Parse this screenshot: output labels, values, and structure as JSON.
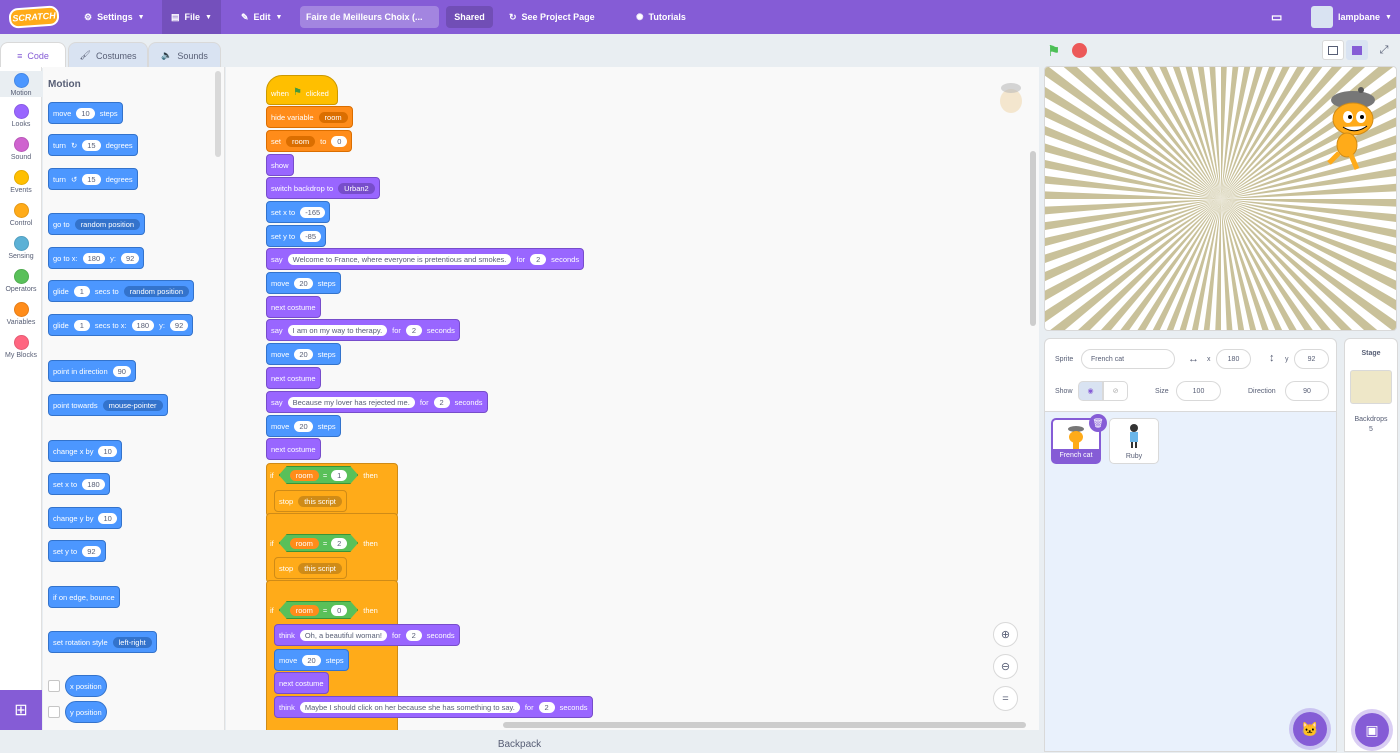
{
  "menubar": {
    "logo": "SCRATCH",
    "settings": "Settings",
    "file": "File",
    "edit": "Edit",
    "project_title": "Faire de Meilleurs Choix (...",
    "shared": "Shared",
    "see_project": "See Project Page",
    "tutorials": "Tutorials",
    "username": "lampbane"
  },
  "tabs": {
    "code": "Code",
    "costumes": "Costumes",
    "sounds": "Sounds"
  },
  "categories": [
    "Motion",
    "Looks",
    "Sound",
    "Events",
    "Control",
    "Sensing",
    "Operators",
    "Variables",
    "My Blocks"
  ],
  "category_colors": [
    "#4c97ff",
    "#9966ff",
    "#cf63cf",
    "#ffbf00",
    "#ffab19",
    "#5cb1d6",
    "#59c059",
    "#ff8c1a",
    "#ff6680"
  ],
  "palette": {
    "title": "Motion",
    "move": {
      "pre": "move",
      "val": "10",
      "post": "steps"
    },
    "turn_right": {
      "pre": "turn",
      "val": "15",
      "post": "degrees"
    },
    "turn_left": {
      "pre": "turn",
      "val": "15",
      "post": "degrees"
    },
    "goto": {
      "pre": "go to",
      "dd": "random position"
    },
    "gotoxy": {
      "pre": "go to x:",
      "x": "180",
      "ylab": "y:",
      "y": "92"
    },
    "glide1": {
      "pre": "glide",
      "val": "1",
      "mid": "secs to",
      "dd": "random position"
    },
    "glide2": {
      "pre": "glide",
      "val": "1",
      "mid": "secs to x:",
      "x": "180",
      "ylab": "y:",
      "y": "92"
    },
    "point_dir": {
      "pre": "point in direction",
      "val": "90"
    },
    "point_towards": {
      "pre": "point towards",
      "dd": "mouse-pointer"
    },
    "change_x": {
      "pre": "change x by",
      "val": "10"
    },
    "set_x": {
      "pre": "set x to",
      "val": "180"
    },
    "change_y": {
      "pre": "change y by",
      "val": "10"
    },
    "set_y": {
      "pre": "set y to",
      "val": "92"
    },
    "bounce": "if on edge, bounce",
    "rotation": {
      "pre": "set rotation style",
      "dd": "left-right"
    },
    "x_pos": "x position",
    "y_pos": "y position"
  },
  "script": {
    "hat": {
      "pre": "when",
      "post": "clicked"
    },
    "hide_var": {
      "pre": "hide variable",
      "dd": "room"
    },
    "set_var": {
      "pre": "set",
      "dd": "room",
      "mid": "to",
      "val": "0"
    },
    "show": "show",
    "backdrop": {
      "pre": "switch backdrop to",
      "dd": "Urban2"
    },
    "setx": {
      "pre": "set x to",
      "val": "-165"
    },
    "sety": {
      "pre": "set y to",
      "val": "-85"
    },
    "say1": {
      "pre": "say",
      "val": "Welcome to France, where everyone is pretentious and smokes.",
      "mid": "for",
      "n": "2",
      "post": "seconds"
    },
    "move1": {
      "pre": "move",
      "val": "20",
      "post": "steps"
    },
    "next1": "next costume",
    "say2": {
      "pre": "say",
      "val": "I am on my way to therapy.",
      "mid": "for",
      "n": "2",
      "post": "seconds"
    },
    "move2": {
      "pre": "move",
      "val": "20",
      "post": "steps"
    },
    "next2": "next costume",
    "say3": {
      "pre": "say",
      "val": "Because my lover has rejected me.",
      "mid": "for",
      "n": "2",
      "post": "seconds"
    },
    "move3": {
      "pre": "move",
      "val": "20",
      "post": "steps"
    },
    "next3": "next costume",
    "if1": {
      "if": "if",
      "var": "room",
      "eq": "=",
      "val": "1",
      "then": "then",
      "stop": "stop",
      "dd": "this script"
    },
    "if2": {
      "if": "if",
      "var": "room",
      "eq": "=",
      "val": "2",
      "then": "then",
      "stop": "stop",
      "dd": "this script"
    },
    "if3": {
      "if": "if",
      "var": "room",
      "eq": "=",
      "val": "0",
      "then": "then"
    },
    "think1": {
      "pre": "think",
      "val": "Oh, a beautiful woman!",
      "mid": "for",
      "n": "2",
      "post": "seconds"
    },
    "move4": {
      "pre": "move",
      "val": "20",
      "post": "steps"
    },
    "next4": "next costume",
    "think2": {
      "pre": "think",
      "val": "Maybe I should click on her because she has something to say.",
      "mid": "for",
      "n": "2",
      "post": "seconds"
    }
  },
  "backpack": "Backpack",
  "sprite_info": {
    "sprite_label": "Sprite",
    "sprite_name": "French cat",
    "x_label": "x",
    "x": "180",
    "y_label": "y",
    "y": "92",
    "show_label": "Show",
    "size_label": "Size",
    "size": "100",
    "direction_label": "Direction",
    "direction": "90"
  },
  "sprites": [
    "French cat",
    "Ruby"
  ],
  "stage_panel": {
    "title": "Stage",
    "backdrops_label": "Backdrops",
    "backdrops_count": "5"
  }
}
